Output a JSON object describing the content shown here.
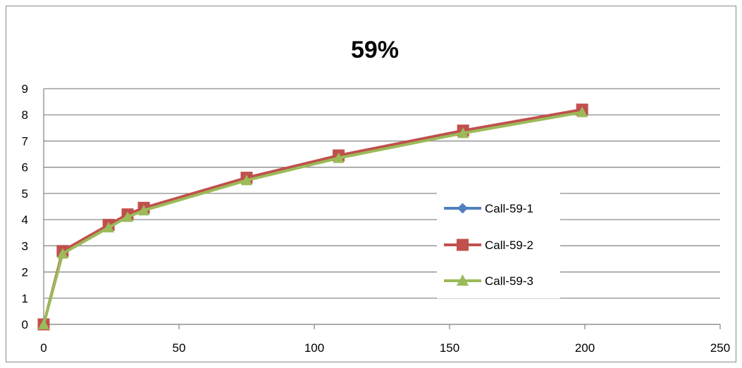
{
  "chart_data": {
    "type": "line",
    "title": "59%",
    "xlabel": "",
    "ylabel": "",
    "xlim": [
      0,
      250
    ],
    "ylim": [
      0,
      9
    ],
    "x_ticks": [
      "0",
      "50",
      "100",
      "150",
      "200",
      "250"
    ],
    "y_ticks": [
      "0",
      "1",
      "2",
      "3",
      "4",
      "5",
      "6",
      "7",
      "8",
      "9"
    ],
    "grid": "horizontal",
    "legend_position": "right",
    "series": [
      {
        "name": "Call-59-1",
        "color": "#4f81bd",
        "marker": "diamond",
        "points": [
          {
            "x": 0,
            "y": 0
          },
          {
            "x": 7,
            "y": 2.75
          },
          {
            "x": 24,
            "y": 3.75
          },
          {
            "x": 31,
            "y": 4.15
          },
          {
            "x": 37,
            "y": 4.4
          },
          {
            "x": 75,
            "y": 5.55
          },
          {
            "x": 109,
            "y": 6.4
          },
          {
            "x": 155,
            "y": 7.35
          },
          {
            "x": 199,
            "y": 8.1
          }
        ]
      },
      {
        "name": "Call-59-2",
        "color": "#c0504d",
        "marker": "square",
        "points": [
          {
            "x": 0,
            "y": 0
          },
          {
            "x": 7,
            "y": 2.8
          },
          {
            "x": 24,
            "y": 3.8
          },
          {
            "x": 31,
            "y": 4.2
          },
          {
            "x": 37,
            "y": 4.45
          },
          {
            "x": 75,
            "y": 5.6
          },
          {
            "x": 109,
            "y": 6.45
          },
          {
            "x": 155,
            "y": 7.4
          },
          {
            "x": 199,
            "y": 8.2
          }
        ]
      },
      {
        "name": "Call-59-3",
        "color": "#9bbb59",
        "marker": "triangle",
        "points": [
          {
            "x": 0,
            "y": 0
          },
          {
            "x": 7,
            "y": 2.7
          },
          {
            "x": 24,
            "y": 3.7
          },
          {
            "x": 31,
            "y": 4.1
          },
          {
            "x": 37,
            "y": 4.35
          },
          {
            "x": 75,
            "y": 5.5
          },
          {
            "x": 109,
            "y": 6.35
          },
          {
            "x": 155,
            "y": 7.3
          },
          {
            "x": 199,
            "y": 8.1
          }
        ]
      }
    ]
  }
}
